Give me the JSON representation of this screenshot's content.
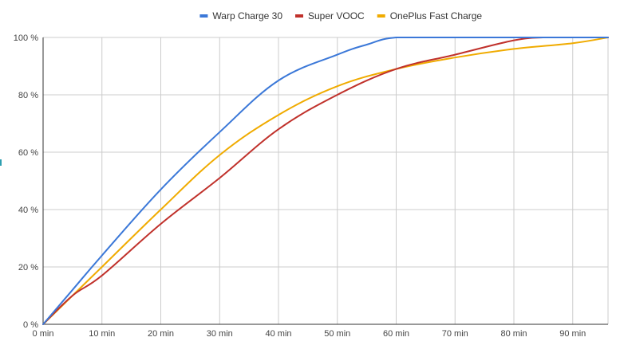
{
  "chart_data": {
    "type": "line",
    "title": "",
    "xlabel": "",
    "ylabel": "",
    "xlim": [
      0,
      96
    ],
    "ylim": [
      0,
      100
    ],
    "x_ticks": [
      0,
      10,
      20,
      30,
      40,
      50,
      60,
      70,
      80,
      90
    ],
    "x_tick_labels": [
      "0 min",
      "10 min",
      "20 min",
      "30 min",
      "40 min",
      "50 min",
      "60 min",
      "70 min",
      "80 min",
      "90 min"
    ],
    "y_ticks": [
      0,
      20,
      40,
      60,
      80,
      100
    ],
    "y_tick_labels": [
      "0 %",
      "20 %",
      "40 %",
      "60 %",
      "80 %",
      "100 %"
    ],
    "grid": true,
    "legend_position": "top",
    "series": [
      {
        "name": "Warp Charge 30",
        "color": "#3b78d8",
        "points": [
          [
            0,
            0
          ],
          [
            5,
            12
          ],
          [
            10,
            24
          ],
          [
            20,
            47
          ],
          [
            30,
            67
          ],
          [
            40,
            85
          ],
          [
            50,
            94
          ],
          [
            55,
            97.5
          ],
          [
            60,
            100
          ],
          [
            70,
            100
          ],
          [
            80,
            100
          ],
          [
            90,
            100
          ],
          [
            96,
            100
          ]
        ]
      },
      {
        "name": "Super VOOC",
        "color": "#c0312b",
        "points": [
          [
            0,
            0
          ],
          [
            5,
            10
          ],
          [
            10,
            17
          ],
          [
            20,
            35
          ],
          [
            30,
            51
          ],
          [
            40,
            68
          ],
          [
            50,
            80
          ],
          [
            60,
            89
          ],
          [
            70,
            94
          ],
          [
            80,
            99
          ],
          [
            85,
            100
          ],
          [
            90,
            100
          ],
          [
            96,
            100
          ]
        ]
      },
      {
        "name": "OnePlus Fast Charge",
        "color": "#f0ab00",
        "points": [
          [
            0,
            0
          ],
          [
            5,
            10
          ],
          [
            10,
            20
          ],
          [
            20,
            40
          ],
          [
            30,
            59
          ],
          [
            40,
            73
          ],
          [
            50,
            83
          ],
          [
            60,
            89
          ],
          [
            70,
            93
          ],
          [
            80,
            96
          ],
          [
            90,
            98
          ],
          [
            96,
            100
          ]
        ]
      }
    ]
  }
}
